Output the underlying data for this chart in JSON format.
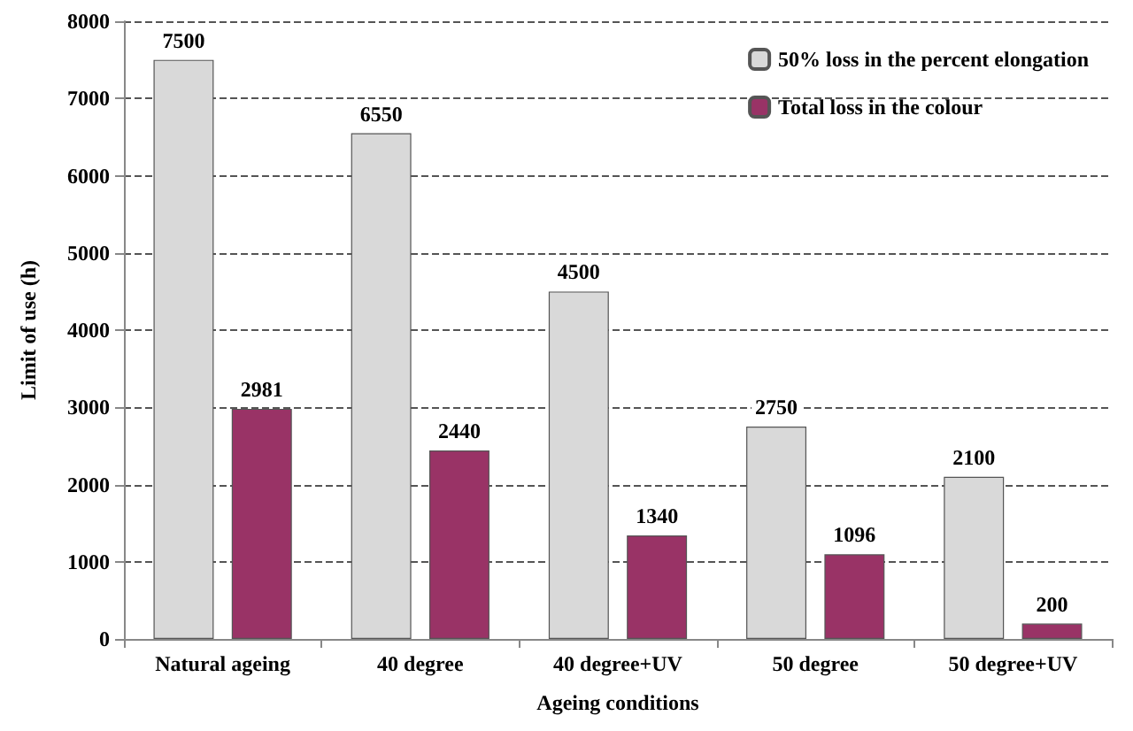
{
  "chart_data": {
    "type": "bar",
    "xlabel": "Ageing conditions",
    "ylabel": "Limit of use (h)",
    "categories": [
      "Natural ageing",
      "40 degree",
      "40 degree+UV",
      "50 degree",
      "50 degree+UV"
    ],
    "series": [
      {
        "name": "50% loss in the percent elongation",
        "color": "#d9d9d9",
        "values": [
          7500,
          6550,
          4500,
          2750,
          2100
        ]
      },
      {
        "name": "Total loss in the colour",
        "color": "#993366",
        "values": [
          2981,
          2440,
          1340,
          1096,
          200
        ]
      }
    ],
    "ylim": [
      0,
      8000
    ],
    "yticks": [
      0,
      1000,
      2000,
      3000,
      4000,
      5000,
      6000,
      7000,
      8000
    ],
    "grid": "y",
    "legend": "top right",
    "data_labels": true
  }
}
